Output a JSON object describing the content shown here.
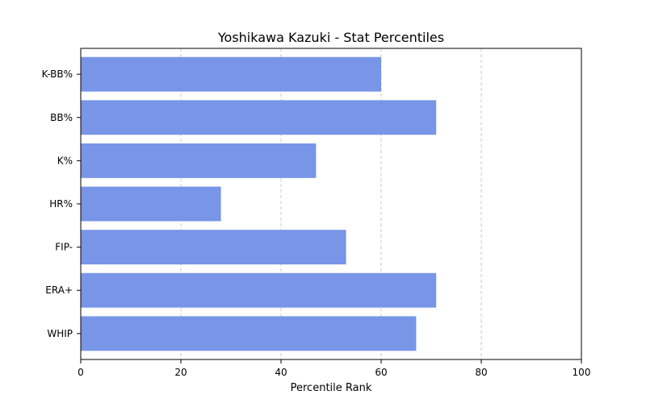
{
  "chart_data": {
    "type": "bar",
    "orientation": "horizontal",
    "title": "Yoshikawa Kazuki - Stat Percentiles",
    "xlabel": "Percentile Rank",
    "ylabel": "",
    "xlim": [
      0,
      100
    ],
    "xticks": [
      0,
      20,
      40,
      60,
      80,
      100
    ],
    "grid": "x-dashed",
    "categories": [
      "WHIP",
      "ERA+",
      "FIP-",
      "HR%",
      "K%",
      "BB%",
      "K-BB%"
    ],
    "values": [
      67,
      71,
      53,
      28,
      47,
      71,
      60
    ],
    "bar_color": "#7895e8",
    "grid_color": "#c8c8c8"
  }
}
